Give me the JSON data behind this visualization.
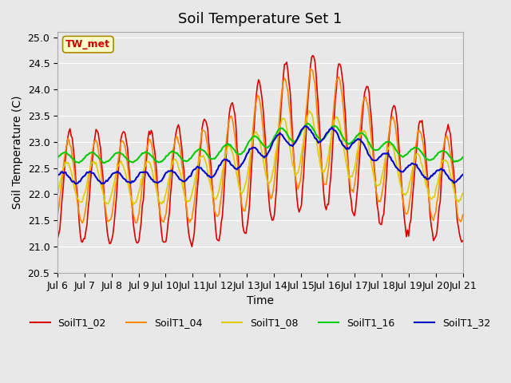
{
  "title": "Soil Temperature Set 1",
  "xlabel": "Time",
  "ylabel": "Soil Temperature (C)",
  "ylim": [
    20.5,
    25.1
  ],
  "xlim_days": [
    6,
    21
  ],
  "background_color": "#e8e8e8",
  "plot_bg_color": "#e8e8e8",
  "grid_color": "#ffffff",
  "annotation_text": "TW_met",
  "annotation_color": "#cc0000",
  "annotation_bg": "#ffffcc",
  "annotation_border": "#aa8800",
  "series": {
    "SoilT1_02": {
      "color": "#dd0000",
      "lw": 1.2
    },
    "SoilT1_04": {
      "color": "#ff8800",
      "lw": 1.2
    },
    "SoilT1_08": {
      "color": "#ddcc00",
      "lw": 1.2
    },
    "SoilT1_16": {
      "color": "#00cc00",
      "lw": 1.5
    },
    "SoilT1_32": {
      "color": "#0000cc",
      "lw": 1.5
    }
  },
  "legend_loc": "lower center",
  "title_fontsize": 13,
  "axis_fontsize": 10,
  "tick_fontsize": 9
}
